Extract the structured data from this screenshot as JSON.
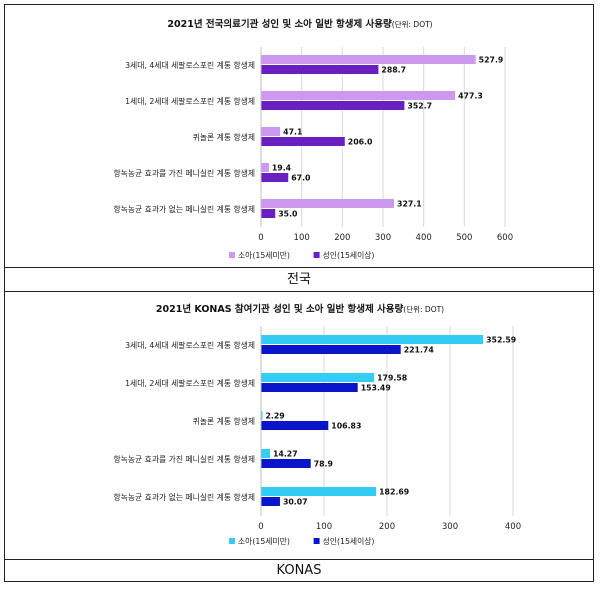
{
  "chart_data": [
    {
      "type": "bar",
      "orientation": "horizontal",
      "title": "2021년 전국의료기관 성인 및 소아 일반 항생제 사용량",
      "unit_note": "(단위: DOT)",
      "categories": [
        "3세대, 4세대 세팔로스포린 계통 항생제",
        "1세대, 2세대 세팔로스포린 계통 항생제",
        "퀴놀론 계통 항생제",
        "항녹농균 효과를 가진 페니실린 계통 항생제",
        "항녹농균 효과가 없는 페니실린 계통 항생제"
      ],
      "series": [
        {
          "name": "소아(15세미만)",
          "color": "#cc99ee",
          "values": [
            527.9,
            477.3,
            47.1,
            19.4,
            327.1
          ],
          "labels": [
            "527.9",
            "477.3",
            "47.1",
            "19.4",
            "327.1"
          ]
        },
        {
          "name": "성인(15세이상)",
          "color": "#6a1fc0",
          "values": [
            288.7,
            352.7,
            206.0,
            67.0,
            35.0
          ],
          "labels": [
            "288.7",
            "352.7",
            "206.0",
            "67.0",
            "35.0"
          ]
        }
      ],
      "xlim": [
        0,
        600
      ],
      "xticks": [
        "0",
        "100",
        "200",
        "300",
        "400",
        "500",
        "600"
      ],
      "grid": true,
      "legend": "bottom",
      "caption": "전국"
    },
    {
      "type": "bar",
      "orientation": "horizontal",
      "title": "2021년 KONAS 참여기관 성인 및 소아 일반 항생제 사용량",
      "unit_note": "(단위: DOT)",
      "categories": [
        "3세대, 4세대 세팔로스포린 계통 항생제",
        "1세대, 2세대 세팔로스포린 계통 항생제",
        "퀴놀론 계통 항생제",
        "항녹농균 효과를 가진 페니실린 계통 항생제",
        "항녹농균 효과가 없는 페니실린 계통 항생제"
      ],
      "series": [
        {
          "name": "소아(15세미만)",
          "color": "#33ccf2",
          "values": [
            352.59,
            179.58,
            2.29,
            14.27,
            182.69
          ],
          "labels": [
            "352.59",
            "179.58",
            "2.29",
            "14.27",
            "182.69"
          ]
        },
        {
          "name": "성인(15세이상)",
          "color": "#0a14c8",
          "values": [
            221.74,
            153.49,
            106.83,
            78.9,
            30.07
          ],
          "labels": [
            "221.74",
            "153.49",
            "106.83",
            "78.9",
            "30.07"
          ]
        }
      ],
      "xlim": [
        0,
        400
      ],
      "xticks": [
        "0",
        "100",
        "200",
        "300",
        "400"
      ],
      "grid": true,
      "legend": "bottom",
      "caption": "KONAS"
    }
  ]
}
